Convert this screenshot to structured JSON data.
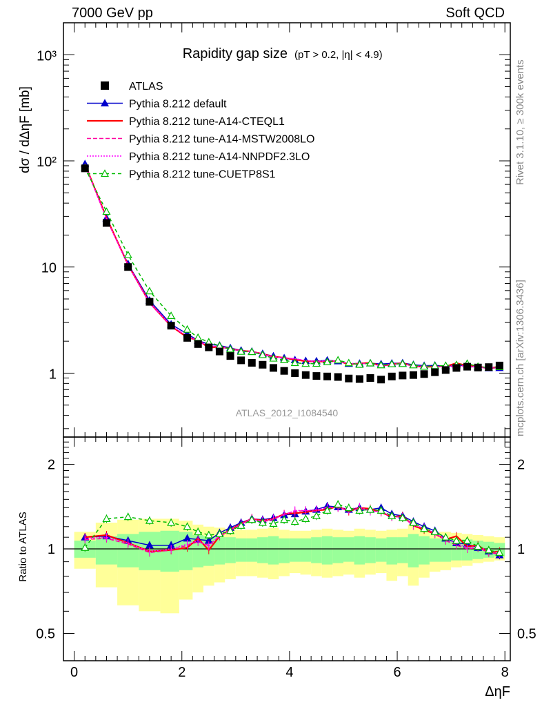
{
  "header": {
    "left": "7000 GeV pp",
    "right": "Soft QCD"
  },
  "side_labels": {
    "rivet": "Rivet 3.1.10, ≥ 300k events",
    "mcplots": "mcplots.cern.ch [arXiv:1306.3436]"
  },
  "chart_data": {
    "type": "line",
    "title": "Rapidity gap size",
    "subtitle": "(pT > 0.2, |η| < 4.9)",
    "analysis_label": "ATLAS_2012_I1084540",
    "xlabel": "ΔηF",
    "ylabel": "dσ / dΔηF [mb]",
    "ratio_ylabel": "Ratio to ATLAS",
    "xlim": [
      -0.2,
      8.1
    ],
    "ylim": [
      0.25,
      2000
    ],
    "ratio_ylim": [
      0.4,
      2.5
    ],
    "xticks": [
      "0",
      "2",
      "4",
      "6",
      "8"
    ],
    "yticks": [
      "10³",
      "10²",
      "10",
      "1"
    ],
    "ratio_yticks": [
      "2",
      "1",
      "0.5"
    ],
    "x": [
      0.2,
      0.6,
      1.0,
      1.4,
      1.8,
      2.1,
      2.3,
      2.5,
      2.7,
      2.9,
      3.1,
      3.3,
      3.5,
      3.7,
      3.9,
      4.1,
      4.3,
      4.5,
      4.7,
      4.9,
      5.1,
      5.3,
      5.5,
      5.7,
      5.9,
      6.1,
      6.3,
      6.5,
      6.7,
      6.9,
      7.1,
      7.3,
      7.5,
      7.7,
      7.9
    ],
    "atlas": {
      "name": "ATLAS",
      "values": [
        85,
        26,
        10,
        4.7,
        2.8,
        2.15,
        1.88,
        1.75,
        1.6,
        1.45,
        1.32,
        1.25,
        1.2,
        1.12,
        1.05,
        1.0,
        0.96,
        0.94,
        0.93,
        0.92,
        0.89,
        0.88,
        0.9,
        0.87,
        0.93,
        0.95,
        0.96,
        0.98,
        1.02,
        1.07,
        1.12,
        1.15,
        1.13,
        1.14,
        1.18
      ]
    },
    "ratio_bands": {
      "green_low": [
        0.93,
        0.88,
        0.86,
        0.84,
        0.83,
        0.84,
        0.86,
        0.87,
        0.88,
        0.89,
        0.9,
        0.9,
        0.89,
        0.88,
        0.89,
        0.9,
        0.9,
        0.89,
        0.88,
        0.89,
        0.9,
        0.88,
        0.89,
        0.9,
        0.88,
        0.89,
        0.86,
        0.88,
        0.9,
        0.9,
        0.91,
        0.91,
        0.92,
        0.93,
        0.94
      ],
      "green_high": [
        1.07,
        1.11,
        1.13,
        1.15,
        1.16,
        1.15,
        1.12,
        1.11,
        1.1,
        1.1,
        1.09,
        1.09,
        1.1,
        1.11,
        1.09,
        1.09,
        1.09,
        1.1,
        1.11,
        1.1,
        1.1,
        1.11,
        1.1,
        1.09,
        1.1,
        1.1,
        1.13,
        1.11,
        1.09,
        1.09,
        1.08,
        1.08,
        1.07,
        1.06,
        1.05
      ],
      "yellow_low": [
        0.85,
        0.73,
        0.63,
        0.6,
        0.59,
        0.66,
        0.7,
        0.74,
        0.76,
        0.78,
        0.8,
        0.8,
        0.79,
        0.78,
        0.8,
        0.82,
        0.81,
        0.8,
        0.79,
        0.8,
        0.81,
        0.79,
        0.81,
        0.82,
        0.77,
        0.8,
        0.74,
        0.79,
        0.83,
        0.84,
        0.86,
        0.87,
        0.89,
        0.9,
        0.91
      ],
      "yellow_high": [
        1.15,
        1.24,
        1.27,
        1.28,
        1.28,
        1.26,
        1.22,
        1.2,
        1.19,
        1.18,
        1.17,
        1.17,
        1.18,
        1.19,
        1.17,
        1.16,
        1.16,
        1.17,
        1.18,
        1.17,
        1.16,
        1.18,
        1.17,
        1.16,
        1.17,
        1.18,
        1.22,
        1.18,
        1.15,
        1.15,
        1.14,
        1.13,
        1.12,
        1.11,
        1.1
      ]
    },
    "series": [
      {
        "name": "Pythia 8.212 default",
        "color": "#0000cc",
        "dash": "",
        "marker": "tri-filled",
        "ratio": [
          1.1,
          1.11,
          1.07,
          1.03,
          1.03,
          1.09,
          1.08,
          1.07,
          1.14,
          1.19,
          1.24,
          1.28,
          1.27,
          1.29,
          1.32,
          1.33,
          1.36,
          1.38,
          1.42,
          1.41,
          1.38,
          1.4,
          1.38,
          1.4,
          1.33,
          1.31,
          1.25,
          1.2,
          1.16,
          1.09,
          1.05,
          1.04,
          1.01,
          0.98,
          0.95
        ]
      },
      {
        "name": "Pythia 8.212 tune-A14-CTEQL1",
        "color": "#ff0000",
        "dash": "",
        "marker": "none",
        "ratio": [
          1.1,
          1.12,
          1.05,
          0.98,
          0.99,
          1.01,
          1.09,
          0.99,
          1.11,
          1.17,
          1.23,
          1.28,
          1.26,
          1.28,
          1.33,
          1.34,
          1.35,
          1.37,
          1.38,
          1.42,
          1.36,
          1.4,
          1.39,
          1.35,
          1.3,
          1.31,
          1.21,
          1.17,
          1.13,
          1.08,
          1.11,
          1.02,
          1.03,
          0.97,
          0.98
        ]
      },
      {
        "name": "Pythia 8.212 tune-A14-MSTW2008LO",
        "color": "#ff00a0",
        "dash": "6,3",
        "marker": "none",
        "ratio": [
          1.08,
          1.09,
          1.04,
          0.97,
          0.99,
          1.03,
          1.06,
          1.03,
          1.11,
          1.17,
          1.22,
          1.29,
          1.25,
          1.27,
          1.33,
          1.36,
          1.37,
          1.36,
          1.41,
          1.4,
          1.37,
          1.39,
          1.37,
          1.35,
          1.31,
          1.29,
          1.22,
          1.18,
          1.14,
          1.07,
          1.03,
          1.0,
          1.01,
          0.97,
          0.96
        ]
      },
      {
        "name": "Pythia 8.212 tune-A14-NNPDF2.3LO",
        "color": "#ff00ff",
        "dash": "2,2",
        "marker": "none",
        "ratio": [
          1.09,
          1.1,
          1.05,
          0.98,
          1.0,
          1.04,
          1.07,
          1.02,
          1.12,
          1.16,
          1.23,
          1.27,
          1.26,
          1.28,
          1.32,
          1.37,
          1.37,
          1.38,
          1.4,
          1.41,
          1.38,
          1.41,
          1.36,
          1.36,
          1.3,
          1.3,
          1.21,
          1.19,
          1.13,
          1.08,
          1.05,
          1.01,
          1.02,
          0.98,
          0.97
        ]
      },
      {
        "name": "Pythia 8.212 tune-CUETP8S1",
        "color": "#00bb00",
        "dash": "5,4",
        "marker": "tri-open",
        "ratio": [
          1.01,
          1.28,
          1.3,
          1.26,
          1.24,
          1.2,
          1.15,
          1.12,
          1.13,
          1.16,
          1.21,
          1.27,
          1.24,
          1.23,
          1.27,
          1.25,
          1.28,
          1.31,
          1.37,
          1.44,
          1.4,
          1.37,
          1.38,
          1.37,
          1.31,
          1.29,
          1.24,
          1.18,
          1.15,
          1.1,
          1.07,
          1.07,
          1.02,
          0.99,
          0.97
        ]
      }
    ]
  }
}
